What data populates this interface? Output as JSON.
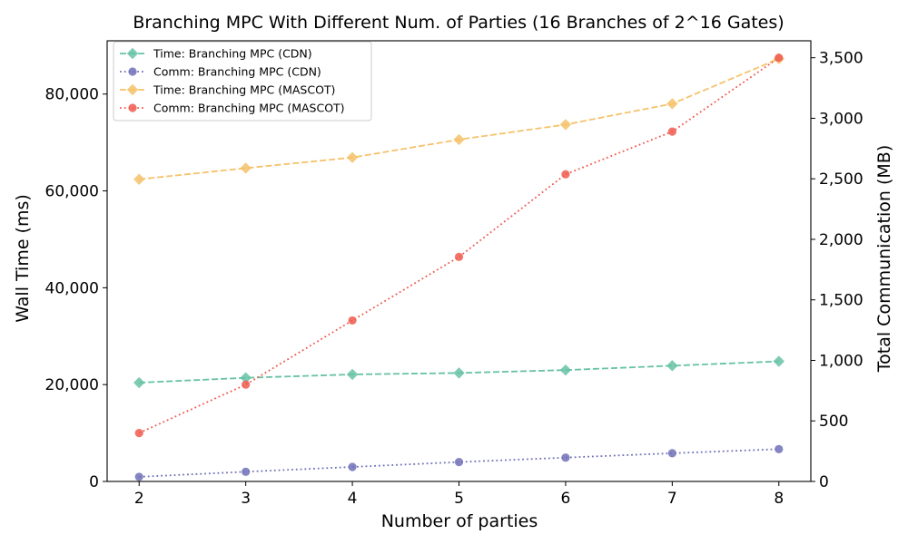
{
  "chart_data": {
    "type": "line",
    "title": "Branching MPC With Different Num. of Parties (16 Branches of 2^16 Gates)",
    "xlabel": "Number of parties",
    "ylabel_left": "Wall Time (ms)",
    "ylabel_right": "Total Communication (MB)",
    "x": [
      2,
      3,
      4,
      5,
      6,
      7,
      8
    ],
    "xticks": [
      "2",
      "3",
      "4",
      "5",
      "6",
      "7",
      "8"
    ],
    "xlim": [
      1.7,
      8.3
    ],
    "ylim_left": [
      0,
      91000
    ],
    "ylim_right": [
      0,
      3640
    ],
    "yticks_left": [
      {
        "v": 0,
        "label": "0"
      },
      {
        "v": 20000,
        "label": "20,000"
      },
      {
        "v": 40000,
        "label": "40,000"
      },
      {
        "v": 60000,
        "label": "60,000"
      },
      {
        "v": 80000,
        "label": "80,000"
      }
    ],
    "yticks_right": [
      {
        "v": 0,
        "label": "0"
      },
      {
        "v": 500,
        "label": "500"
      },
      {
        "v": 1000,
        "label": "1,000"
      },
      {
        "v": 1500,
        "label": "1,500"
      },
      {
        "v": 2000,
        "label": "2,000"
      },
      {
        "v": 2500,
        "label": "2,500"
      },
      {
        "v": 3000,
        "label": "3,000"
      },
      {
        "v": 3500,
        "label": "3,500"
      }
    ],
    "legend_position": "top-left",
    "grid": false,
    "series": [
      {
        "name": "Time: Branching MPC (CDN)",
        "axis": "left",
        "marker": "diamond",
        "dash": "dashed",
        "color": "#66c2a5",
        "values": [
          20400,
          21400,
          22100,
          22400,
          23000,
          23900,
          24800
        ]
      },
      {
        "name": "Comm: Branching MPC (CDN)",
        "axis": "right",
        "marker": "circle",
        "dash": "dotted",
        "color": "#7070b8",
        "values": [
          38,
          80,
          120,
          160,
          197,
          233,
          267
        ]
      },
      {
        "name": "Time: Branching MPC (MASCOT)",
        "axis": "left",
        "marker": "diamond",
        "dash": "dashed",
        "color": "#f5c26b",
        "values": [
          62400,
          64700,
          66900,
          70600,
          73700,
          78000,
          87300
        ]
      },
      {
        "name": "Comm: Branching MPC (MASCOT)",
        "axis": "right",
        "marker": "circle",
        "dash": "dotted",
        "color": "#ee5a4f",
        "values": [
          400,
          800,
          1330,
          1855,
          2537,
          2890,
          3500
        ]
      }
    ]
  }
}
